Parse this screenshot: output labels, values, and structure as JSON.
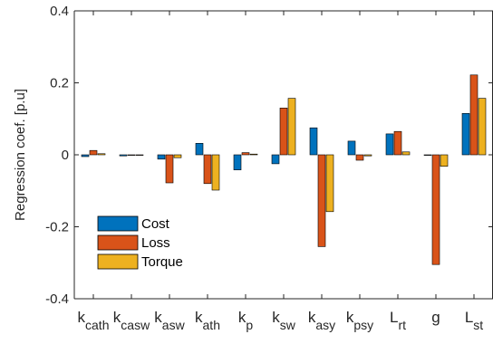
{
  "chart_data": {
    "type": "bar",
    "ylabel": "Regression coef. [p.u]",
    "ylim": [
      -0.4,
      0.4
    ],
    "yticks": [
      -0.4,
      -0.2,
      0,
      0.2,
      0.4
    ],
    "ytick_labels": [
      "-0.4",
      "-0.2",
      "0",
      "0.2",
      "0.4"
    ],
    "grid": false,
    "legend_position": "lower-left",
    "categories": [
      {
        "base": "k",
        "sub": "cath"
      },
      {
        "base": "k",
        "sub": "casw"
      },
      {
        "base": "k",
        "sub": "asw"
      },
      {
        "base": "k",
        "sub": "ath"
      },
      {
        "base": "k",
        "sub": "p"
      },
      {
        "base": "k",
        "sub": "sw"
      },
      {
        "base": "k",
        "sub": "asy"
      },
      {
        "base": "k",
        "sub": "psy"
      },
      {
        "base": "L",
        "sub": "rt"
      },
      {
        "base": "g",
        "sub": ""
      },
      {
        "base": "L",
        "sub": "st"
      }
    ],
    "series": [
      {
        "name": "Cost",
        "color": "#0072BD",
        "values": [
          -0.005,
          -0.003,
          -0.012,
          0.032,
          -0.042,
          -0.025,
          0.075,
          0.038,
          0.058,
          0.0,
          0.115
        ]
      },
      {
        "name": "Loss",
        "color": "#D95319",
        "values": [
          0.012,
          0.0,
          -0.078,
          -0.08,
          0.006,
          0.13,
          -0.255,
          -0.015,
          0.065,
          -0.305,
          0.222
        ]
      },
      {
        "name": "Torque",
        "color": "#EDB120",
        "values": [
          0.003,
          0.0,
          -0.008,
          -0.098,
          0.002,
          0.157,
          -0.158,
          -0.003,
          0.008,
          -0.032,
          0.157
        ]
      }
    ]
  }
}
